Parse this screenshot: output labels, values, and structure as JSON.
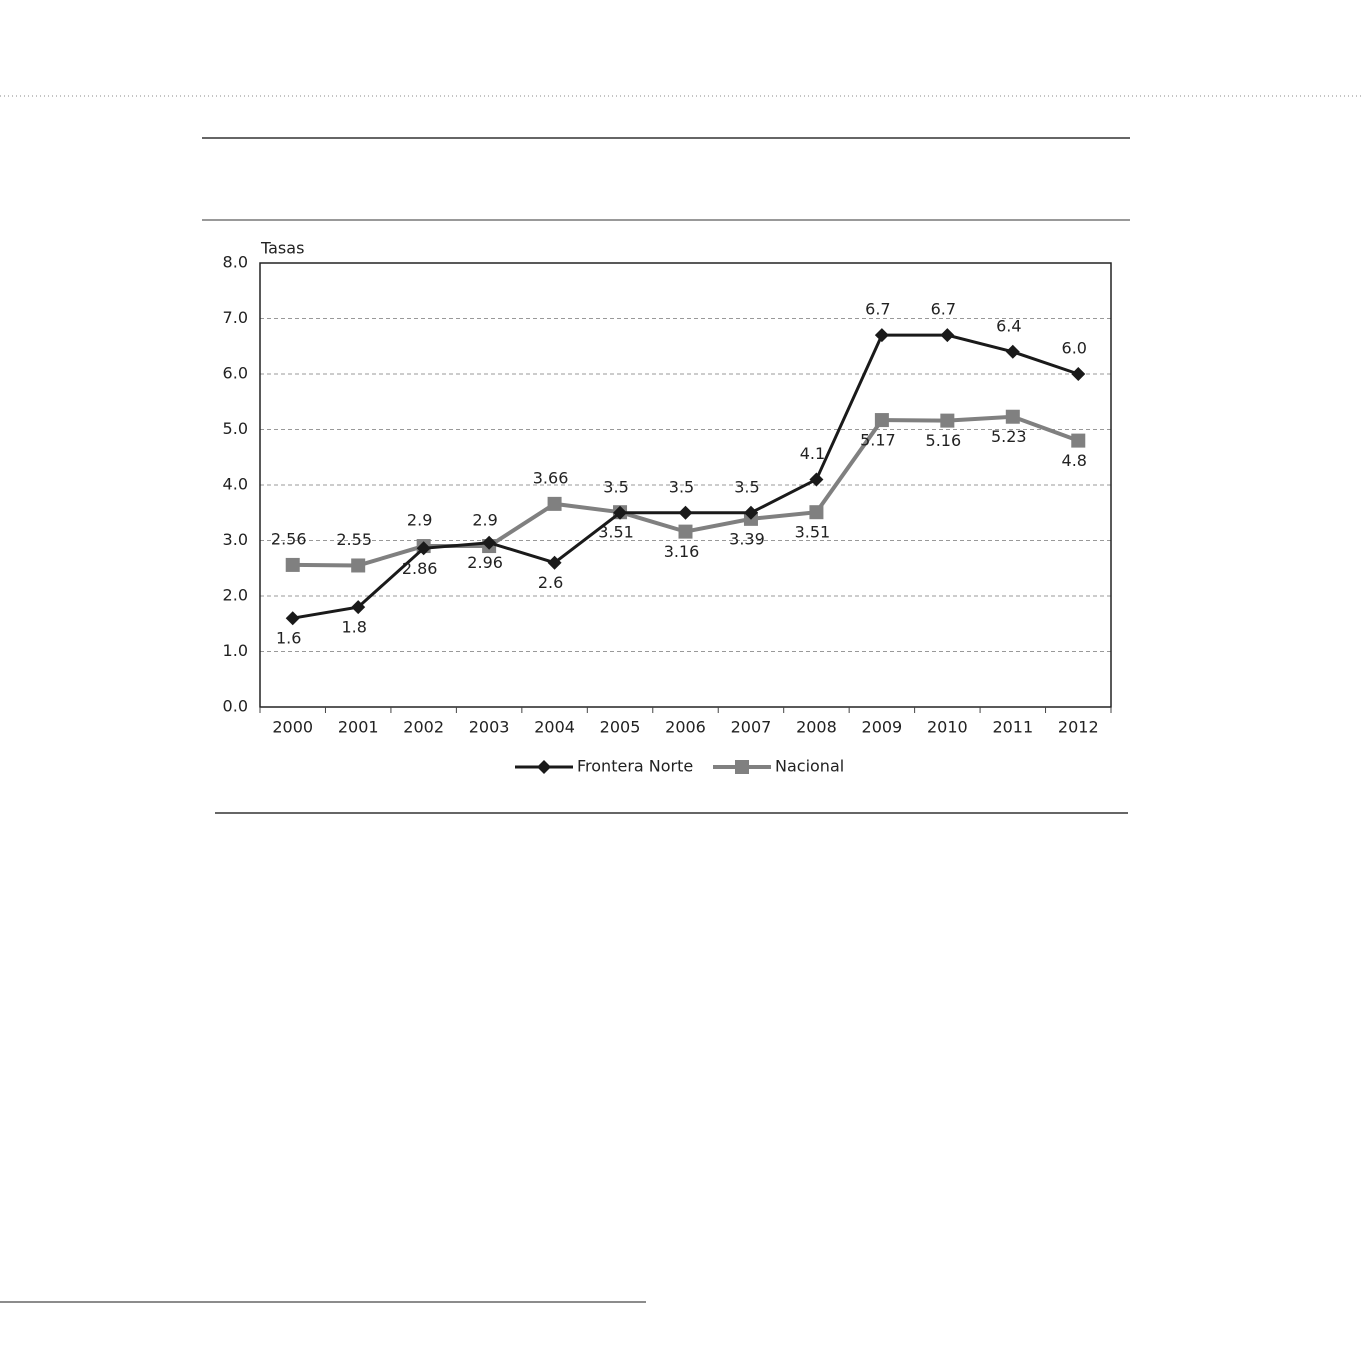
{
  "chart_data": {
    "type": "line",
    "y_label": "Tasas",
    "categories": [
      "2000",
      "2001",
      "2002",
      "2003",
      "2004",
      "2005",
      "2006",
      "2007",
      "2008",
      "2009",
      "2010",
      "2011",
      "2012"
    ],
    "series": [
      {
        "name": "Frontera Norte",
        "color": "#1a1a1a",
        "marker": "diamond",
        "values": [
          1.6,
          1.8,
          2.86,
          2.96,
          2.6,
          3.5,
          3.5,
          3.5,
          4.1,
          6.7,
          6.7,
          6.4,
          6.0
        ],
        "value_labels": [
          "1.6",
          "1.8",
          "2.86",
          "2.96",
          "2.6",
          "3.5",
          "3.5",
          "3.5",
          "4.1",
          "6.7",
          "6.7",
          "6.4",
          "6.0"
        ]
      },
      {
        "name": "Nacional",
        "color": "#808080",
        "marker": "square",
        "values": [
          2.56,
          2.55,
          2.9,
          2.9,
          3.66,
          3.51,
          3.16,
          3.39,
          3.51,
          5.17,
          5.16,
          5.23,
          4.8
        ]
      }
    ],
    "ylim": [
      0,
      8
    ],
    "yticks": [
      {
        "value": 0,
        "label": "0.0"
      },
      {
        "value": 1,
        "label": "1.0"
      },
      {
        "value": 2,
        "label": "2.0"
      },
      {
        "value": 3,
        "label": "3.0"
      },
      {
        "value": 4,
        "label": "4.0"
      },
      {
        "value": 5,
        "label": "5.0"
      },
      {
        "value": 6,
        "label": "6.0"
      },
      {
        "value": 7,
        "label": "7.0"
      },
      {
        "value": 8,
        "label": "8.0"
      }
    ],
    "grid": true,
    "legend": "bottom"
  }
}
